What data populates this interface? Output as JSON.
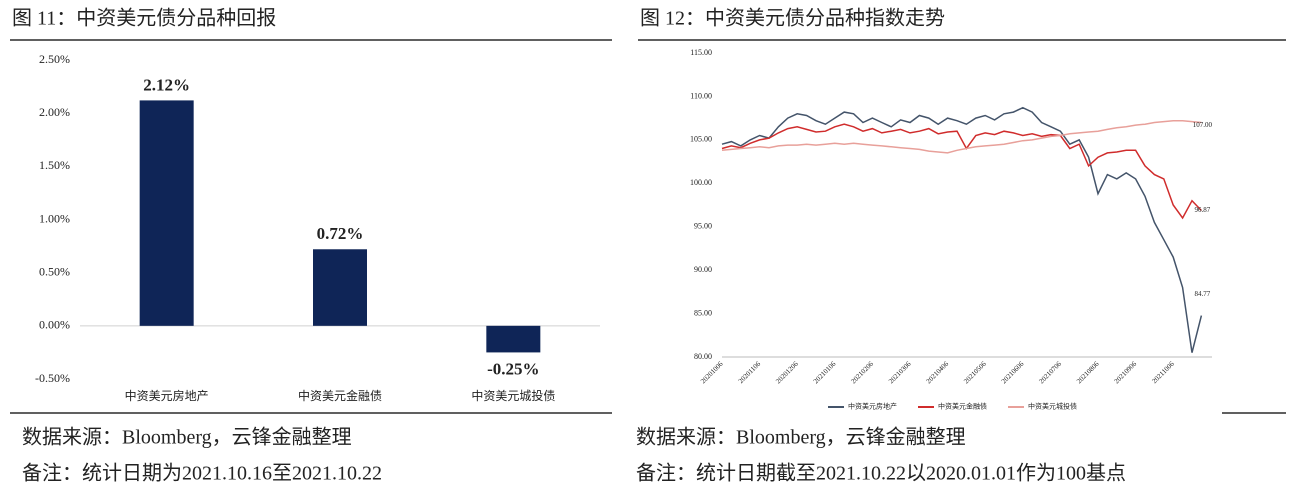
{
  "chart_data": [
    {
      "type": "bar",
      "title": "图 11：中资美元债分品种回报",
      "categories": [
        "中资美元房地产",
        "中资美元金融债",
        "中资美元城投债"
      ],
      "values": [
        2.12,
        0.72,
        -0.25
      ],
      "value_labels": [
        "2.12%",
        "0.72%",
        "-0.25%"
      ],
      "color": "#0f2557",
      "ylim": [
        -0.5,
        2.5
      ],
      "yticks": [
        {
          "value": 2.5,
          "label": "2.50%"
        },
        {
          "value": 2.0,
          "label": "2.00%"
        },
        {
          "value": 1.5,
          "label": "1.50%"
        },
        {
          "value": 1.0,
          "label": "1.00%"
        },
        {
          "value": 0.5,
          "label": "0.50%"
        },
        {
          "value": 0,
          "label": "0.00%"
        },
        {
          "value": -0.5,
          "label": "-0.50%"
        }
      ],
      "grid": false,
      "source": "数据来源：Bloomberg，云锋金融整理",
      "note": "备注：统计日期为2021.10.16至2021.10.22"
    },
    {
      "type": "line",
      "title": "图 12：中资美元债分品种指数走势",
      "categories": [
        "20201006",
        null,
        null,
        null,
        "20201106",
        null,
        null,
        null,
        "20201206",
        null,
        null,
        null,
        "20210106",
        null,
        null,
        null,
        "20210206",
        null,
        null,
        null,
        "20210306",
        null,
        null,
        null,
        "20210406",
        null,
        null,
        null,
        "20210506",
        null,
        null,
        null,
        "20210606",
        null,
        null,
        null,
        "20210706",
        null,
        null,
        null,
        "20210806",
        null,
        null,
        null,
        "20210906",
        null,
        null,
        null,
        "20211006",
        null,
        null,
        null
      ],
      "series": [
        {
          "name": "中资美元房地产",
          "color": "#44546a",
          "values": [
            104.5,
            104.8,
            104.3,
            105.0,
            105.5,
            105.2,
            106.5,
            107.5,
            108.0,
            107.8,
            107.2,
            106.8,
            107.5,
            108.2,
            108.0,
            107.0,
            107.5,
            107.0,
            106.5,
            107.3,
            107.0,
            107.8,
            107.5,
            106.8,
            107.5,
            107.2,
            106.8,
            107.5,
            107.8,
            107.3,
            108.0,
            108.2,
            108.7,
            108.2,
            107.0,
            106.5,
            106.0,
            104.5,
            105.0,
            103.0,
            98.8,
            101.0,
            100.5,
            101.2,
            100.5,
            98.5,
            95.5,
            93.5,
            91.5,
            88.0,
            80.5,
            84.77
          ],
          "value_labels": [
            null,
            null,
            null,
            null,
            null,
            null,
            null,
            null,
            null,
            null,
            null,
            null,
            null,
            null,
            null,
            null,
            null,
            null,
            null,
            null,
            null,
            null,
            null,
            null,
            null,
            null,
            null,
            null,
            null,
            null,
            null,
            null,
            null,
            null,
            null,
            null,
            null,
            null,
            null,
            null,
            null,
            null,
            null,
            null,
            null,
            null,
            null,
            null,
            null,
            null,
            null,
            "84.77"
          ]
        },
        {
          "name": "中资美元金融债",
          "color": "#d02c2c",
          "values": [
            104.0,
            104.3,
            104.1,
            104.6,
            105.0,
            105.2,
            105.8,
            106.3,
            106.5,
            106.2,
            105.9,
            106.0,
            106.5,
            106.8,
            106.5,
            106.0,
            106.3,
            105.8,
            106.0,
            106.2,
            105.8,
            106.0,
            106.3,
            105.7,
            105.9,
            106.0,
            104.0,
            105.5,
            105.8,
            105.6,
            106.0,
            105.8,
            105.5,
            105.7,
            105.4,
            105.6,
            105.5,
            104.0,
            104.5,
            102.0,
            103.0,
            103.5,
            103.6,
            103.8,
            103.8,
            102.0,
            101.0,
            100.5,
            97.5,
            96.0,
            98.0,
            96.87
          ],
          "value_labels": [
            null,
            null,
            null,
            null,
            null,
            null,
            null,
            null,
            null,
            null,
            null,
            null,
            null,
            null,
            null,
            null,
            null,
            null,
            null,
            null,
            null,
            null,
            null,
            null,
            null,
            null,
            null,
            null,
            null,
            null,
            null,
            null,
            null,
            null,
            null,
            null,
            null,
            null,
            null,
            null,
            null,
            null,
            null,
            null,
            null,
            null,
            null,
            null,
            null,
            null,
            null,
            "96.87"
          ]
        },
        {
          "name": "中资美元城投债",
          "color": "#e8a09a",
          "values": [
            103.8,
            103.9,
            104.0,
            104.1,
            104.2,
            104.1,
            104.3,
            104.4,
            104.4,
            104.5,
            104.4,
            104.5,
            104.6,
            104.5,
            104.6,
            104.5,
            104.4,
            104.3,
            104.2,
            104.1,
            104.0,
            103.9,
            103.7,
            103.6,
            103.5,
            103.8,
            104.0,
            104.2,
            104.3,
            104.4,
            104.5,
            104.7,
            104.9,
            105.0,
            105.2,
            105.4,
            105.5,
            105.7,
            105.8,
            105.9,
            106.0,
            106.2,
            106.4,
            106.5,
            106.7,
            106.8,
            107.0,
            107.1,
            107.2,
            107.2,
            107.1,
            107.0
          ],
          "value_labels": [
            null,
            null,
            null,
            null,
            null,
            null,
            null,
            null,
            null,
            null,
            null,
            null,
            null,
            null,
            null,
            null,
            null,
            null,
            null,
            null,
            null,
            null,
            null,
            null,
            null,
            null,
            null,
            null,
            null,
            null,
            null,
            null,
            null,
            null,
            null,
            null,
            null,
            null,
            null,
            null,
            null,
            null,
            null,
            null,
            null,
            null,
            null,
            null,
            null,
            null,
            null,
            "107.00"
          ]
        }
      ],
      "ylim": [
        80,
        115
      ],
      "yticks": [
        {
          "value": 115,
          "label": "115.00"
        },
        {
          "value": 110,
          "label": "110.00"
        },
        {
          "value": 105,
          "label": "105.00"
        },
        {
          "value": 100,
          "label": "100.00"
        },
        {
          "value": 95,
          "label": "95.00"
        },
        {
          "value": 90,
          "label": "90.00"
        },
        {
          "value": 85,
          "label": "85.00"
        },
        {
          "value": 80,
          "label": "80.00"
        }
      ],
      "grid": false,
      "legend": "bottom",
      "source": "数据来源：Bloomberg，云锋金融整理",
      "note": "备注：统计日期截至2021.10.22以2020.01.01作为100基点"
    }
  ]
}
